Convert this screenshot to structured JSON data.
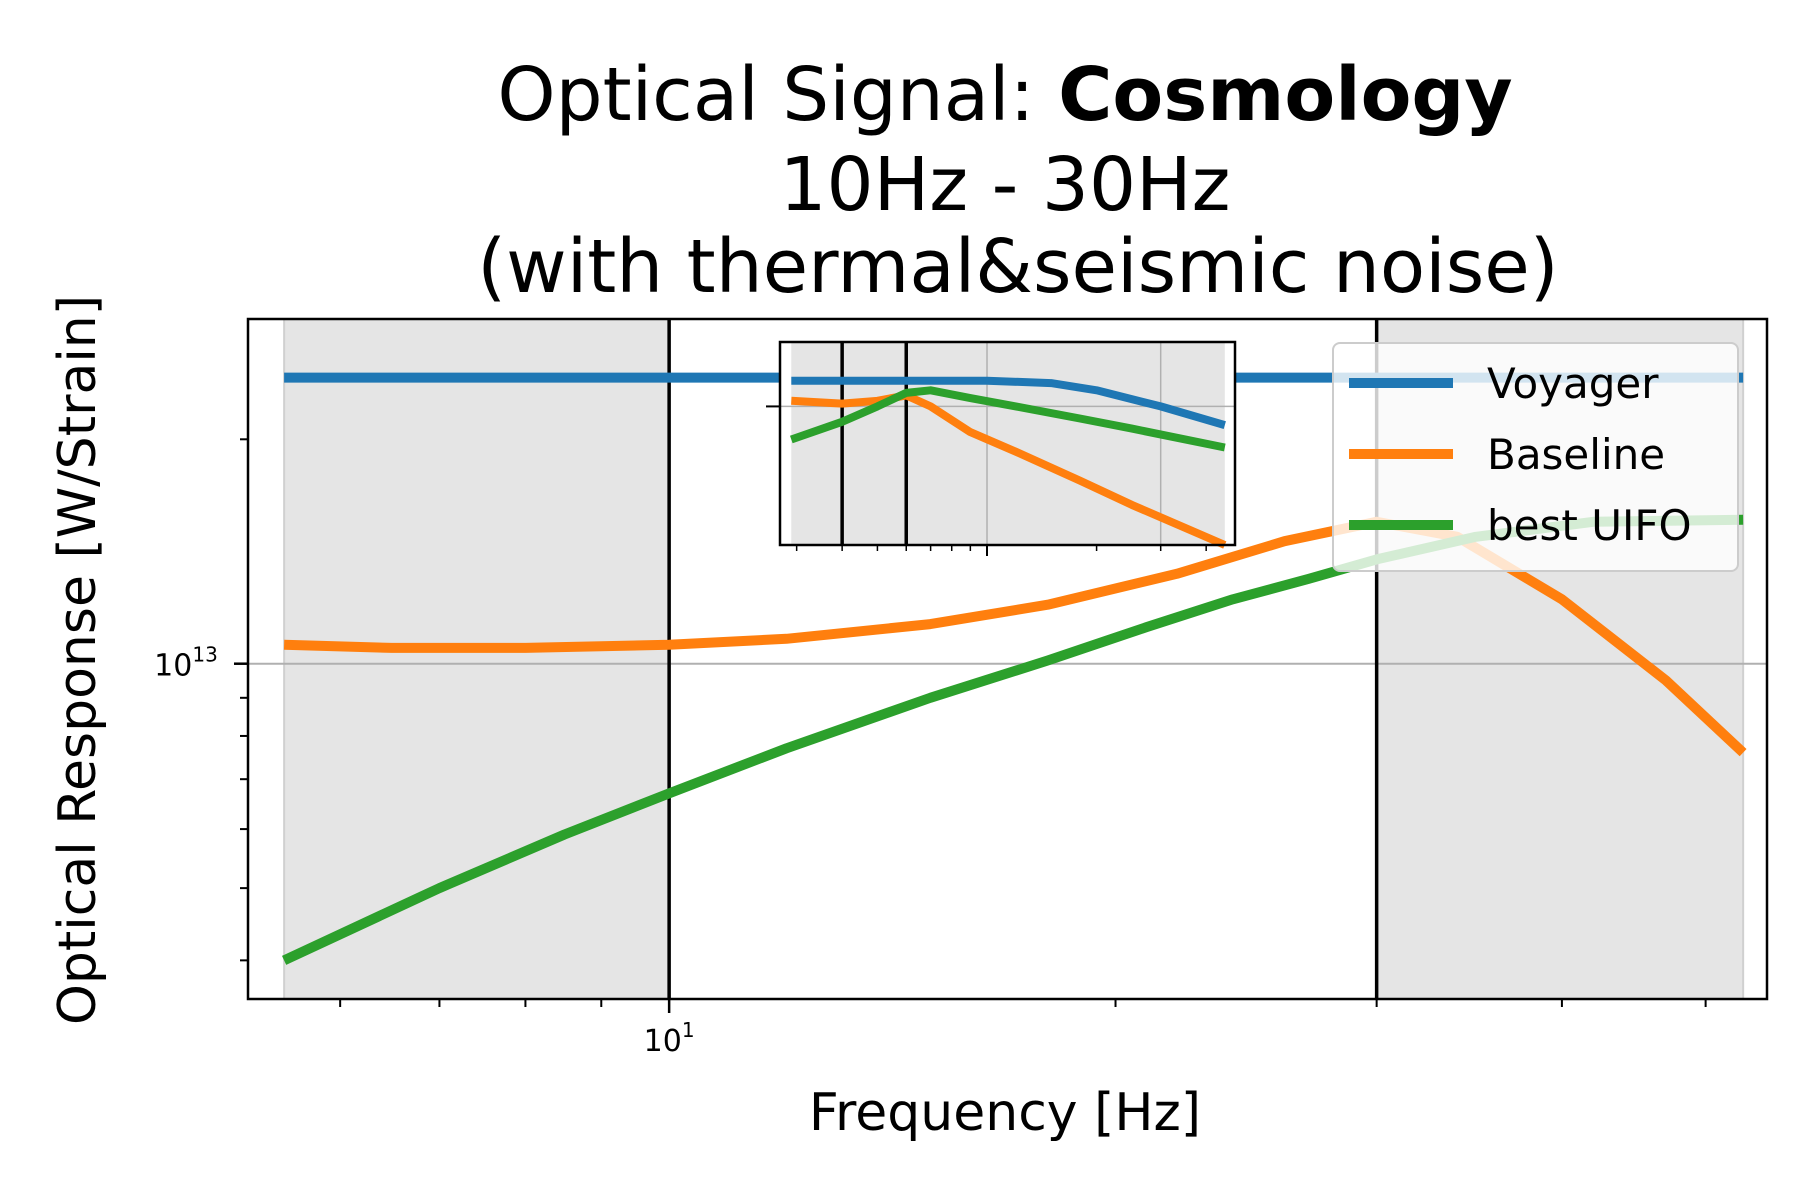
{
  "chart_data": {
    "type": "line",
    "title": {
      "line1_prefix": "Optical Signal: ",
      "line1_bold": "Cosmology",
      "line2": "10Hz - 30Hz",
      "line3": "(with thermal&seismic noise)"
    },
    "xlabel": "Frequency [Hz]",
    "ylabel": "Optical Response [W/Strain]",
    "xscale": "log",
    "yscale": "log",
    "xlim": [
      5.2,
      55
    ],
    "ylim": [
      3550000000000.0,
      29000000000000.0
    ],
    "xtick_labels": [
      {
        "value": 10,
        "base": "10",
        "exp": "1"
      }
    ],
    "ytick_labels": [
      {
        "value": 10000000000000.0,
        "base": "10",
        "exp": "13"
      }
    ],
    "grid": "major",
    "shaded_regions": [
      [
        5.5,
        10
      ],
      [
        30,
        53
      ]
    ],
    "vertical_lines": [
      10,
      30
    ],
    "legend_position": "upper right",
    "series": [
      {
        "name": "Voyager",
        "color": "#1f77b4",
        "x": [
          5.5,
          8,
          10,
          15,
          20,
          30,
          53
        ],
        "y": [
          24200000000000.0,
          24200000000000.0,
          24200000000000.0,
          24200000000000.0,
          24200000000000.0,
          24200000000000.0,
          24200000000000.0
        ]
      },
      {
        "name": "Baseline",
        "color": "#ff7f0e",
        "x": [
          5.5,
          6.5,
          8,
          10,
          12,
          15,
          18,
          22,
          26,
          30,
          34,
          40,
          47,
          53
        ],
        "y": [
          10600000000000.0,
          10500000000000.0,
          10500000000000.0,
          10600000000000.0,
          10800000000000.0,
          11300000000000.0,
          12000000000000.0,
          13200000000000.0,
          14600000000000.0,
          15500000000000.0,
          14800000000000.0,
          12200000000000.0,
          9500000000000.0,
          7600000000000.0
        ]
      },
      {
        "name": "best UIFO",
        "color": "#2ca02c",
        "x": [
          5.5,
          7,
          8.5,
          10,
          12,
          15,
          18,
          21,
          24,
          27,
          30,
          35,
          42,
          53
        ],
        "y": [
          4000000000000.0,
          5000000000000.0,
          5900000000000.0,
          6700000000000.0,
          7700000000000.0,
          9000000000000.0,
          10100000000000.0,
          11200000000000.0,
          12200000000000.0,
          13000000000000.0,
          13800000000000.0,
          14800000000000.0,
          15500000000000.0,
          15600000000000.0
        ]
      }
    ],
    "inset": {
      "description_hidden": true,
      "xscale": "log",
      "yscale": "log",
      "xlim": [
        2.7,
        48
      ],
      "ylim": [
        6000000000000.0,
        35000000000000.0
      ],
      "shaded_regions": [
        [
          2.9,
          4
        ],
        [
          4,
          45
        ]
      ],
      "vertical_lines": [
        4,
        6
      ],
      "grid": "major",
      "series": [
        {
          "name": "Voyager",
          "color": "#1f77b4",
          "x": [
            2.9,
            6,
            10,
            15,
            20,
            30,
            45
          ],
          "y": [
            25000000000000.0,
            25000000000000.0,
            25000000000000.0,
            24500000000000.0,
            23000000000000.0,
            20000000000000.0,
            17000000000000.0
          ]
        },
        {
          "name": "Baseline",
          "color": "#ff7f0e",
          "x": [
            2.9,
            4,
            5,
            6,
            7,
            9,
            12,
            18,
            25,
            45
          ],
          "y": [
            21000000000000.0,
            20500000000000.0,
            21000000000000.0,
            22000000000000.0,
            20000000000000.0,
            16000000000000.0,
            13500000000000.0,
            10500000000000.0,
            8500000000000.0,
            6000000000000.0
          ]
        },
        {
          "name": "best UIFO",
          "color": "#2ca02c",
          "x": [
            2.9,
            4,
            5,
            6,
            7,
            9,
            12,
            18,
            25,
            45
          ],
          "y": [
            15000000000000.0,
            17500000000000.0,
            20000000000000.0,
            22500000000000.0,
            23000000000000.0,
            21500000000000.0,
            20000000000000.0,
            18000000000000.0,
            16500000000000.0,
            14000000000000.0
          ]
        }
      ]
    }
  }
}
